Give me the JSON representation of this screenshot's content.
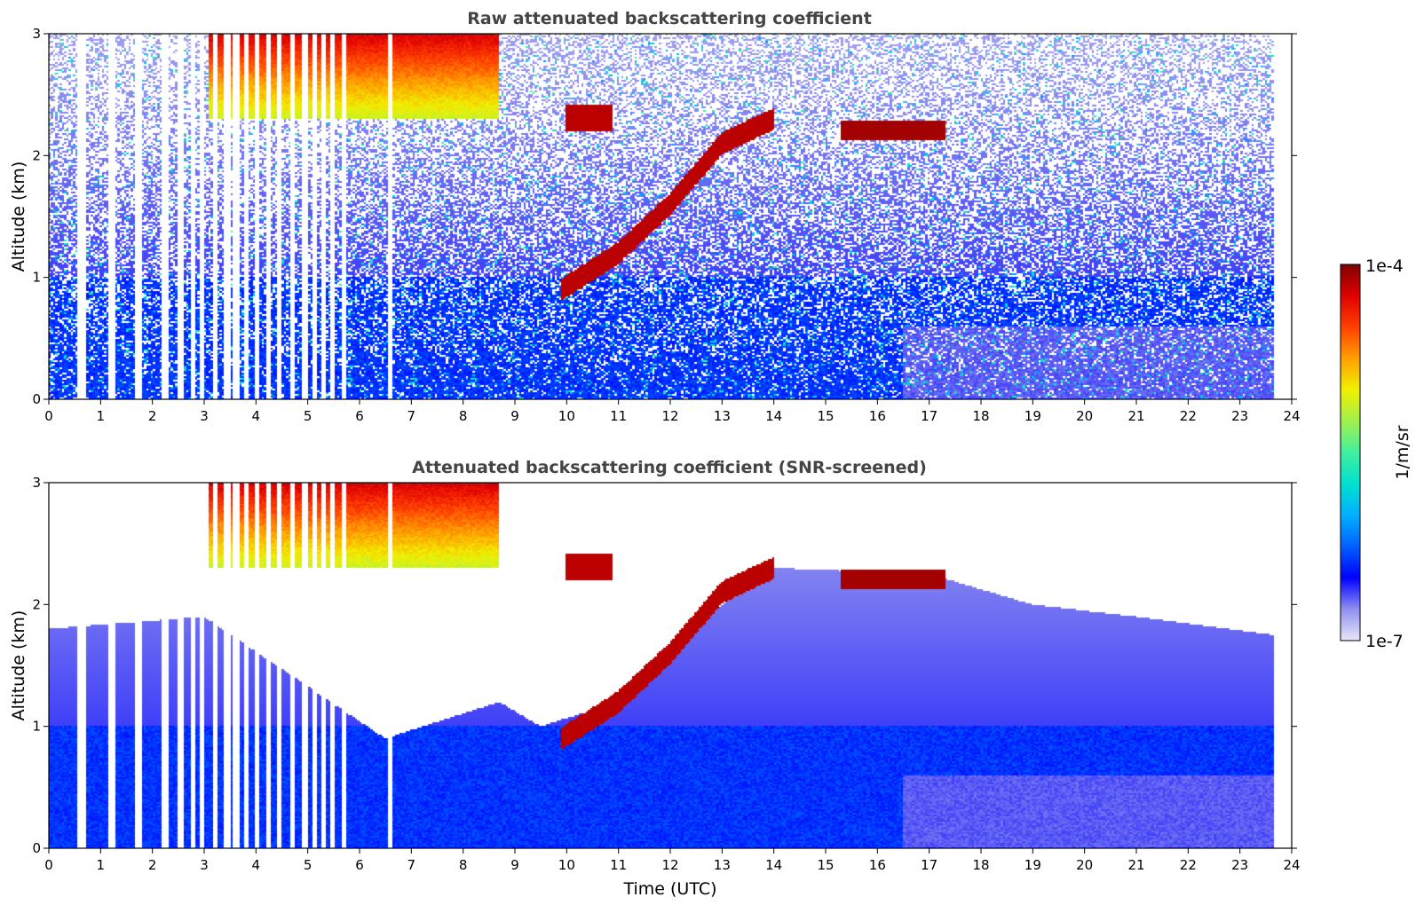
{
  "chart_data": [
    {
      "type": "heatmap",
      "title": "Raw attenuated backscattering coefficient",
      "xlabel": "",
      "ylabel": "Altitude (km)",
      "xlim": [
        0,
        24
      ],
      "ylim": [
        0,
        3
      ],
      "x_ticks": [
        "0",
        "1",
        "2",
        "3",
        "4",
        "5",
        "6",
        "7",
        "8",
        "9",
        "10",
        "11",
        "12",
        "13",
        "14",
        "15",
        "16",
        "17",
        "18",
        "19",
        "20",
        "21",
        "22",
        "23",
        "24"
      ],
      "y_ticks": [
        "0",
        "1",
        "2",
        "3"
      ],
      "data_end_hour": 23.67,
      "gap_hours": [
        0.6,
        0.7,
        1.22,
        1.7,
        1.75,
        2.25,
        2.55,
        2.78,
        2.95,
        3.2,
        3.45,
        3.62,
        3.8,
        4.02,
        4.25,
        4.45,
        4.7,
        4.95,
        5.15,
        5.3,
        5.48,
        5.7,
        6.6
      ],
      "features": [
        {
          "name": "boundary-layer aerosol",
          "x_range": [
            0,
            23.67
          ],
          "alt_range": [
            0,
            1.0
          ],
          "value": "low"
        },
        {
          "name": "morning cloud",
          "x_range": [
            3.1,
            8.7
          ],
          "alt_range": [
            2.2,
            3.0
          ],
          "value": "high"
        },
        {
          "name": "rising cloud layer",
          "points": [
            [
              9.9,
              0.9
            ],
            [
              11.0,
              1.2
            ],
            [
              12.0,
              1.6
            ],
            [
              13.0,
              2.1
            ],
            [
              14.0,
              2.3
            ]
          ],
          "value": "high"
        },
        {
          "name": "afternoon cloud",
          "x_range": [
            15.3,
            17.3
          ],
          "alt_range": [
            2.15,
            2.28
          ],
          "value": "high"
        },
        {
          "name": "cloud fragment",
          "x_range": [
            10.0,
            10.9
          ],
          "alt_range": [
            2.2,
            2.4
          ],
          "value": "high"
        }
      ]
    },
    {
      "type": "heatmap",
      "title": "Attenuated backscattering coefficient (SNR-screened)",
      "xlabel": "Time (UTC)",
      "ylabel": "Altitude (km)",
      "xlim": [
        0,
        24
      ],
      "ylim": [
        0,
        3
      ],
      "x_ticks": [
        "0",
        "1",
        "2",
        "3",
        "4",
        "5",
        "6",
        "7",
        "8",
        "9",
        "10",
        "11",
        "12",
        "13",
        "14",
        "15",
        "16",
        "17",
        "18",
        "19",
        "20",
        "21",
        "22",
        "23",
        "24"
      ],
      "y_ticks": [
        "0",
        "1",
        "2",
        "3"
      ],
      "data_end_hour": 23.67,
      "screened_top_km": [
        [
          0,
          1.8
        ],
        [
          3.0,
          1.9
        ],
        [
          6.5,
          0.9
        ],
        [
          8.7,
          1.2
        ],
        [
          9.5,
          1.0
        ],
        [
          11.0,
          1.2
        ],
        [
          12.0,
          1.6
        ],
        [
          13.0,
          2.0
        ],
        [
          14.0,
          2.3
        ],
        [
          17.0,
          2.25
        ],
        [
          19.0,
          2.0
        ],
        [
          21.0,
          1.9
        ],
        [
          23.67,
          1.75
        ]
      ]
    }
  ],
  "colorbar": {
    "label": "1/m/sr",
    "max_label": "1e-4",
    "min_label": "1e-7",
    "scale": "log",
    "range": [
      1e-07,
      0.0001
    ],
    "colormap": [
      "#e8e8f8",
      "#9090f0",
      "#0000ff",
      "#0060ff",
      "#00b0ff",
      "#00e0d0",
      "#40f0a0",
      "#a0f050",
      "#f0f000",
      "#ffa000",
      "#ff4000",
      "#e00000",
      "#800000"
    ]
  }
}
